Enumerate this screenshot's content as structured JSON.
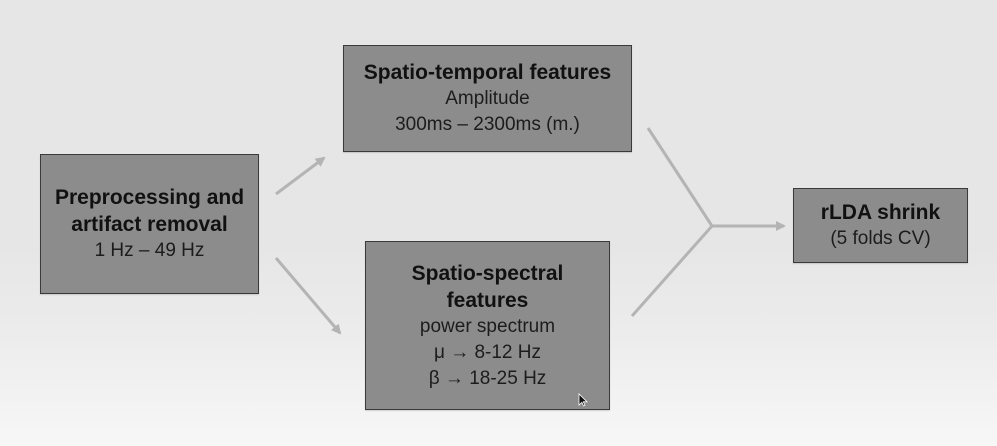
{
  "diagram": {
    "preprocessing": {
      "title_line1": "Preprocessing and",
      "title_line2": "artifact removal",
      "detail": "1 Hz – 49 Hz"
    },
    "spatio_temporal": {
      "title": "Spatio-temporal features",
      "detail1": "Amplitude",
      "detail2": "300ms – 2300ms (m.)"
    },
    "spatio_spectral": {
      "title_line1": "Spatio-spectral",
      "title_line2": "features",
      "detail1": "power spectrum",
      "detail2": "μ → 8-12 Hz",
      "detail3": "β → 18-25 Hz"
    },
    "classifier": {
      "title": "rLDA shrink",
      "detail": "(5 folds CV)"
    }
  },
  "colors": {
    "background": "#e6e6e6",
    "box_fill": "#8c8c8c",
    "box_border": "#3a3a3a",
    "connector": "#b4b4b4"
  }
}
